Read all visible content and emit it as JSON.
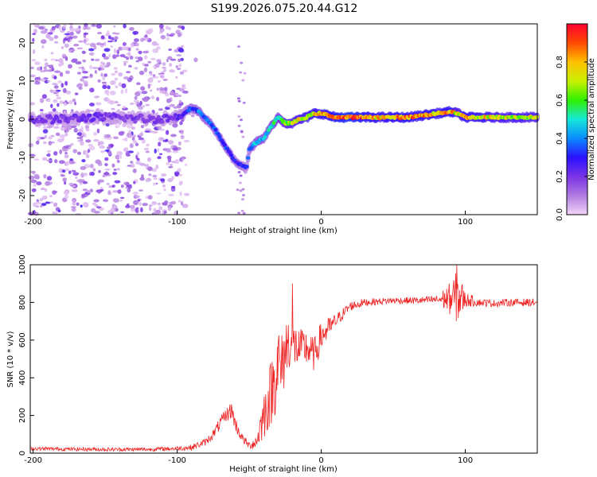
{
  "title": "S199.2026.075.20.44.G12",
  "colors": {
    "snr_line": "#ee2222",
    "colormap": [
      "#f2d7f8",
      "#b07be0",
      "#7a33e6",
      "#2a10ff",
      "#0a8cff",
      "#16e8d8",
      "#30f000",
      "#c8f000",
      "#ffc000",
      "#ff4a00",
      "#ff0030"
    ]
  },
  "chart_data": [
    {
      "id": "spectrogram",
      "type": "heatmap",
      "xlabel": "Height of straight line (km)",
      "ylabel": "Frequency (Hz)",
      "xlim": [
        -202,
        150
      ],
      "ylim": [
        -25,
        25
      ],
      "xticks": [
        -200,
        -100,
        0,
        100
      ],
      "yticks": [
        -20,
        -10,
        0,
        10,
        20
      ],
      "colorbar": {
        "label": "Normalized spectral amplitude",
        "range": [
          0,
          1
        ],
        "ticks": [
          "0.0",
          "0.2",
          "0.4",
          "0.6",
          "0.8"
        ]
      },
      "ridge": {
        "x": [
          -200,
          -180,
          -160,
          -140,
          -120,
          -100,
          -90,
          -85,
          -80,
          -75,
          -70,
          -65,
          -60,
          -55,
          -52,
          -50,
          -45,
          -40,
          -35,
          -30,
          -25,
          -20,
          -15,
          -10,
          -5,
          0,
          10,
          20,
          40,
          60,
          80,
          90,
          95,
          100,
          120,
          150
        ],
        "frequency": [
          0,
          0,
          0.5,
          0.5,
          0,
          0.5,
          3,
          2,
          0,
          -2,
          -5,
          -8,
          -11,
          -12,
          -13,
          -8,
          -6,
          -5,
          -2,
          0.5,
          -1,
          -1,
          0,
          0.5,
          1.5,
          1.5,
          0.5,
          0.5,
          0.5,
          0.5,
          1.5,
          2,
          1.5,
          0.5,
          0.5,
          0.5
        ],
        "amplitude": [
          0.2,
          0.2,
          0.22,
          0.2,
          0.2,
          0.22,
          0.35,
          0.4,
          0.38,
          0.35,
          0.35,
          0.32,
          0.3,
          0.3,
          0.28,
          0.4,
          0.45,
          0.45,
          0.5,
          0.55,
          0.65,
          0.7,
          0.72,
          0.75,
          0.78,
          0.78,
          0.88,
          0.95,
          0.8,
          0.85,
          0.8,
          0.85,
          0.7,
          0.8,
          0.75,
          0.7
        ]
      },
      "noise_region_x": [
        -202,
        -95
      ]
    },
    {
      "id": "snr",
      "type": "line",
      "xlabel": "Height of straight line (km)",
      "ylabel": "SNR (10 * v/v)",
      "xlim": [
        -202,
        150
      ],
      "ylim": [
        0,
        1000
      ],
      "xticks": [
        -200,
        -100,
        0,
        100
      ],
      "yticks": [
        0,
        200,
        400,
        600,
        800,
        1000
      ],
      "series": [
        {
          "x": [
            -202,
            -180,
            -150,
            -120,
            -100,
            -90,
            -80,
            -75,
            -70,
            -65,
            -62,
            -60,
            -55,
            -50,
            -45,
            -40,
            -35,
            -32,
            -30,
            -28,
            -25,
            -22,
            -20,
            -15,
            -10,
            -5,
            0,
            5,
            10,
            15,
            20,
            25,
            30,
            40,
            50,
            60,
            70,
            80,
            90,
            95,
            100,
            110,
            120,
            130,
            150
          ],
          "y": [
            25,
            22,
            20,
            20,
            25,
            30,
            60,
            100,
            160,
            210,
            230,
            160,
            80,
            40,
            60,
            200,
            320,
            400,
            500,
            420,
            550,
            600,
            580,
            550,
            560,
            520,
            620,
            660,
            700,
            740,
            780,
            790,
            800,
            805,
            810,
            810,
            810,
            815,
            820,
            830,
            815,
            800,
            795,
            800,
            800
          ],
          "fluct": [
            10,
            10,
            10,
            10,
            12,
            15,
            20,
            25,
            35,
            40,
            45,
            40,
            25,
            20,
            40,
            130,
            180,
            200,
            220,
            200,
            180,
            150,
            130,
            110,
            100,
            90,
            80,
            60,
            40,
            30,
            25,
            25,
            20,
            18,
            18,
            18,
            20,
            22,
            90,
            150,
            40,
            20,
            20,
            20,
            20
          ]
        }
      ],
      "spike_annotations": [
        {
          "x": -20,
          "y": 900
        },
        {
          "x": 94,
          "y": 1000
        }
      ]
    }
  ]
}
